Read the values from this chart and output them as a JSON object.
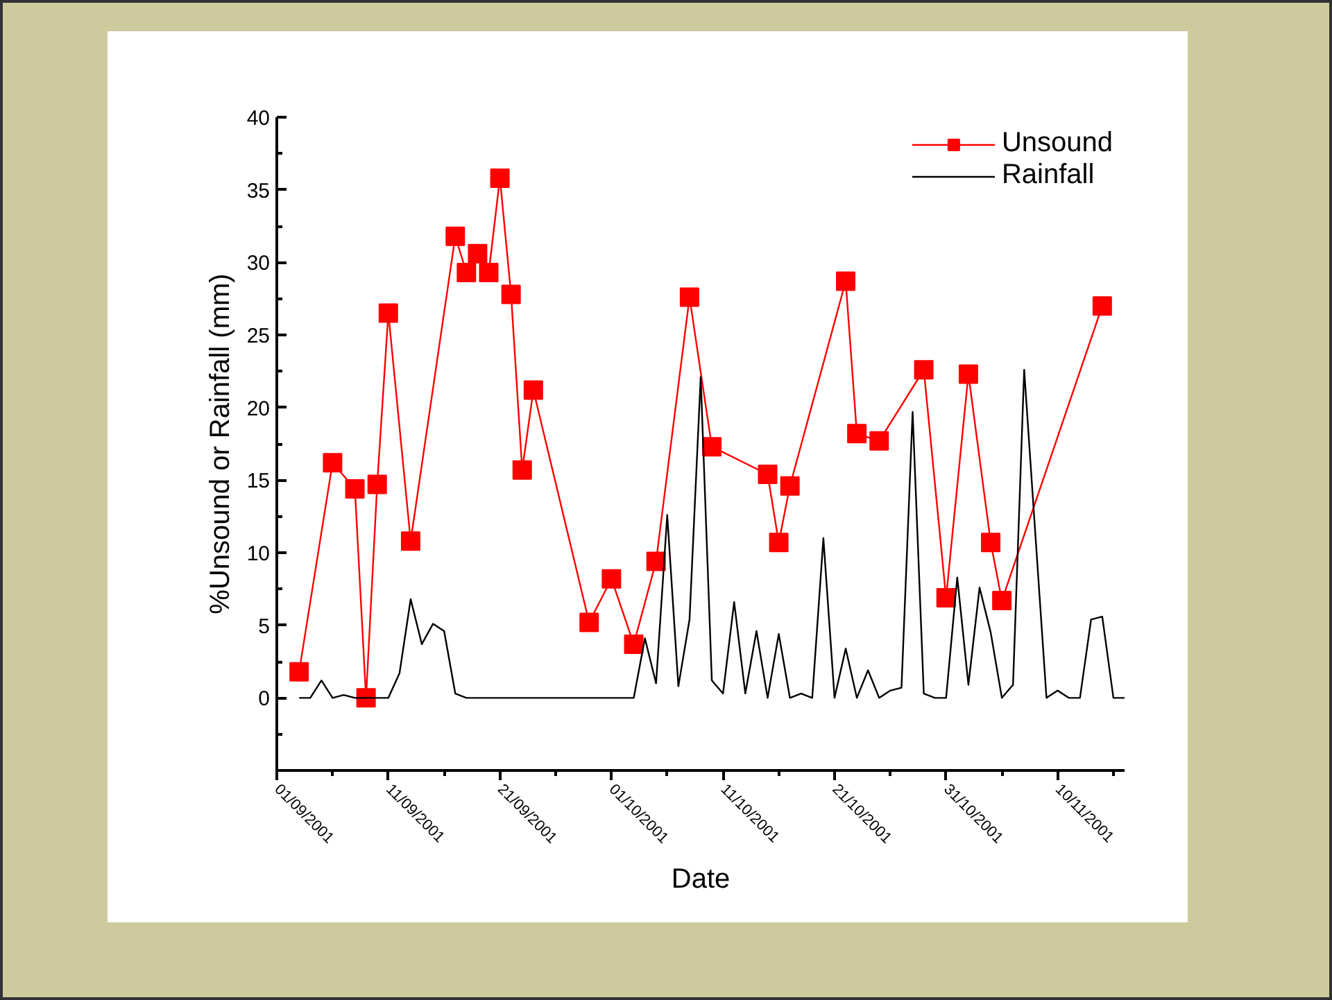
{
  "chart_data": {
    "type": "line",
    "xlabel": "Date",
    "ylabel": "%Unsound or Rainfall (mm)",
    "xlim": [
      "2001-09-01",
      "2001-11-16"
    ],
    "xticks": [
      {
        "value": "2001-09-01",
        "label": "01/09/2001"
      },
      {
        "value": "2001-09-06",
        "label": null
      },
      {
        "value": "2001-09-11",
        "label": "11/09/2001"
      },
      {
        "value": "2001-09-16",
        "label": null
      },
      {
        "value": "2001-09-21",
        "label": "21/09/2001"
      },
      {
        "value": "2001-09-26",
        "label": null
      },
      {
        "value": "2001-10-01",
        "label": "01/10/2001"
      },
      {
        "value": "2001-10-06",
        "label": null
      },
      {
        "value": "2001-10-11",
        "label": "11/10/2001"
      },
      {
        "value": "2001-10-16",
        "label": null
      },
      {
        "value": "2001-10-21",
        "label": "21/10/2001"
      },
      {
        "value": "2001-10-26",
        "label": null
      },
      {
        "value": "2001-10-31",
        "label": "31/10/2001"
      },
      {
        "value": "2001-11-05",
        "label": null
      },
      {
        "value": "2001-11-10",
        "label": "10/11/2001"
      },
      {
        "value": "2001-11-15",
        "label": null
      }
    ],
    "ylim": [
      -5,
      40
    ],
    "yticks": [
      {
        "value": -5,
        "label": null
      },
      {
        "value": -2.5,
        "label": null
      },
      0,
      {
        "value": 2.5,
        "label": null
      },
      5,
      {
        "value": 7.5,
        "label": null
      },
      10,
      {
        "value": 12.5,
        "label": null
      },
      15,
      {
        "value": 17.5,
        "label": null
      },
      20,
      {
        "value": 22.5,
        "label": null
      },
      25,
      {
        "value": 27.5,
        "label": null
      },
      30,
      {
        "value": 32.5,
        "label": null
      },
      35,
      {
        "value": 37.5,
        "label": null
      },
      40
    ],
    "grid": false,
    "legend": "top right",
    "series": [
      {
        "name": "Unsound",
        "color": "#ff0000",
        "marker": "square",
        "x": [
          "2001-09-03",
          "2001-09-06",
          "2001-09-08",
          "2001-09-09",
          "2001-09-10",
          "2001-09-11",
          "2001-09-13",
          "2001-09-17",
          "2001-09-18",
          "2001-09-19",
          "2001-09-20",
          "2001-09-21",
          "2001-09-22",
          "2001-09-23",
          "2001-09-24",
          "2001-09-29",
          "2001-10-01",
          "2001-10-03",
          "2001-10-05",
          "2001-10-08",
          "2001-10-10",
          "2001-10-15",
          "2001-10-16",
          "2001-10-17",
          "2001-10-22",
          "2001-10-23",
          "2001-10-25",
          "2001-10-29",
          "2001-10-31",
          "2001-11-02",
          "2001-11-04",
          "2001-11-05",
          "2001-11-14"
        ],
        "values": [
          1.8,
          16.2,
          14.4,
          0,
          14.7,
          26.5,
          10.8,
          31.8,
          29.3,
          30.6,
          29.3,
          35.8,
          27.8,
          15.7,
          21.2,
          5.2,
          8.2,
          3.7,
          9.4,
          27.6,
          17.3,
          15.4,
          10.7,
          14.6,
          28.7,
          18.2,
          17.7,
          22.6,
          6.9,
          22.3,
          10.7,
          6.7,
          27.0
        ]
      },
      {
        "name": "Rainfall",
        "color": "#000000",
        "marker": "none",
        "x": [
          "2001-09-03",
          "2001-09-04",
          "2001-09-05",
          "2001-09-06",
          "2001-09-07",
          "2001-09-08",
          "2001-09-09",
          "2001-09-10",
          "2001-09-11",
          "2001-09-12",
          "2001-09-13",
          "2001-09-14",
          "2001-09-15",
          "2001-09-16",
          "2001-09-17",
          "2001-09-18",
          "2001-09-19",
          "2001-09-20",
          "2001-09-21",
          "2001-09-22",
          "2001-09-23",
          "2001-09-24",
          "2001-09-25",
          "2001-09-26",
          "2001-09-27",
          "2001-09-28",
          "2001-09-29",
          "2001-09-30",
          "2001-10-01",
          "2001-10-02",
          "2001-10-03",
          "2001-10-04",
          "2001-10-05",
          "2001-10-06",
          "2001-10-07",
          "2001-10-08",
          "2001-10-09",
          "2001-10-10",
          "2001-10-11",
          "2001-10-12",
          "2001-10-13",
          "2001-10-14",
          "2001-10-15",
          "2001-10-16",
          "2001-10-17",
          "2001-10-18",
          "2001-10-19",
          "2001-10-20",
          "2001-10-21",
          "2001-10-22",
          "2001-10-23",
          "2001-10-24",
          "2001-10-25",
          "2001-10-26",
          "2001-10-27",
          "2001-10-28",
          "2001-10-29",
          "2001-10-30",
          "2001-10-31",
          "2001-11-01",
          "2001-11-02",
          "2001-11-03",
          "2001-11-04",
          "2001-11-05",
          "2001-11-06",
          "2001-11-07",
          "2001-11-09",
          "2001-11-10",
          "2001-11-11",
          "2001-11-12",
          "2001-11-13",
          "2001-11-14",
          "2001-11-15",
          "2001-11-16"
        ],
        "values": [
          0,
          0,
          1.2,
          0,
          0.2,
          0,
          0,
          0,
          0,
          1.7,
          6.8,
          3.7,
          5.1,
          4.6,
          0.3,
          0,
          0,
          0,
          0,
          0,
          0,
          0,
          0,
          0,
          0,
          0,
          0,
          0,
          0,
          0,
          0,
          4.1,
          1.0,
          12.6,
          0.8,
          5.4,
          22.1,
          1.2,
          0.3,
          6.6,
          0.3,
          4.6,
          0,
          4.4,
          0,
          0.3,
          0,
          11.0,
          0,
          3.4,
          0,
          1.9,
          0,
          0.5,
          0.7,
          19.7,
          0.3,
          0,
          0,
          8.3,
          0.9,
          7.6,
          4.5,
          0,
          0.9,
          22.6,
          0,
          0.5,
          0,
          0,
          5.4,
          5.6,
          0,
          0
        ]
      }
    ]
  }
}
